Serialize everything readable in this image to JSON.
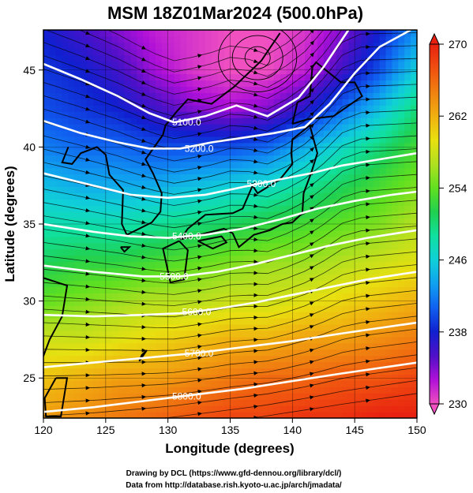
{
  "chart_data": {
    "type": "heatmap",
    "title": "MSM 18Z01Mar2024 (500.0hPa)",
    "xlabel": "Longitude (degrees)",
    "ylabel": "Latitude  (degrees)",
    "xlim": [
      120,
      150
    ],
    "ylim": [
      22.4,
      47.6
    ],
    "x_ticks": [
      "120",
      "125",
      "130",
      "135",
      "140",
      "145",
      "150"
    ],
    "y_ticks": [
      "25",
      "30",
      "35",
      "40",
      "45"
    ],
    "colorbar": {
      "min": 230,
      "max": 270,
      "ticks": [
        "230",
        "238",
        "246",
        "254",
        "262",
        "270"
      ],
      "extend": "both",
      "colors": [
        "#f050c0",
        "#b010d8",
        "#5010c8",
        "#1020d0",
        "#1060f0",
        "#10a0f0",
        "#10d0d8",
        "#10e0a0",
        "#20d050",
        "#60e020",
        "#b0e020",
        "#e8e010",
        "#f0b010",
        "#f08010",
        "#f05010",
        "#e82010"
      ]
    },
    "temperature_field": [
      {
        "lat": 47.5,
        "values": [
          238,
          236,
          234,
          232,
          231,
          230,
          230,
          231,
          234,
          238,
          243
        ]
      },
      {
        "lat": 45,
        "values": [
          239,
          238,
          236,
          233,
          231,
          230,
          230,
          232,
          236,
          240,
          246
        ]
      },
      {
        "lat": 42.5,
        "values": [
          240,
          239,
          238,
          236,
          234,
          233,
          234,
          237,
          241,
          245,
          250
        ]
      },
      {
        "lat": 40,
        "values": [
          242,
          241,
          241,
          240,
          240,
          240,
          241,
          244,
          247,
          250,
          253
        ]
      },
      {
        "lat": 37.5,
        "values": [
          245,
          244,
          244,
          244,
          245,
          246,
          247,
          249,
          251,
          253,
          255
        ]
      },
      {
        "lat": 35,
        "values": [
          248,
          248,
          248,
          249,
          250,
          251,
          252,
          253,
          254,
          255,
          257
        ]
      },
      {
        "lat": 32.5,
        "values": [
          251,
          252,
          252,
          253,
          254,
          255,
          256,
          256,
          257,
          258,
          259
        ]
      },
      {
        "lat": 30,
        "values": [
          254,
          255,
          256,
          257,
          257,
          258,
          258,
          259,
          260,
          261,
          262
        ]
      },
      {
        "lat": 27.5,
        "values": [
          258,
          258,
          259,
          260,
          261,
          262,
          262,
          263,
          263,
          264,
          265
        ]
      },
      {
        "lat": 25,
        "values": [
          261,
          262,
          263,
          263,
          264,
          265,
          266,
          266,
          267,
          267,
          268
        ]
      },
      {
        "lat": 22.5,
        "values": [
          263,
          264,
          265,
          266,
          267,
          268,
          268,
          269,
          269,
          270,
          270
        ]
      }
    ],
    "field_lons": [
      120,
      123,
      126,
      129,
      132,
      135,
      138,
      141,
      144,
      147,
      150
    ],
    "height_contours": [
      {
        "label": "5100.0",
        "points": [
          [
            120,
            45.4
          ],
          [
            123,
            44.4
          ],
          [
            126,
            43.3
          ],
          [
            128.5,
            42.2
          ],
          [
            130.5,
            41.6
          ],
          [
            133,
            42.0
          ],
          [
            135.5,
            42.7
          ],
          [
            138,
            42.0
          ],
          [
            140.5,
            43.2
          ],
          [
            142.5,
            45.2
          ],
          [
            144.5,
            47.6
          ]
        ],
        "label_at": [
          131.5,
          41.6
        ]
      },
      {
        "label": "5200.0",
        "points": [
          [
            120,
            41.7
          ],
          [
            123,
            40.9
          ],
          [
            126,
            40.3
          ],
          [
            128.5,
            39.9
          ],
          [
            131,
            39.9
          ],
          [
            133.5,
            40.3
          ],
          [
            136,
            40.6
          ],
          [
            138.5,
            40.9
          ],
          [
            141,
            41.3
          ],
          [
            143,
            42.8
          ],
          [
            145,
            44.8
          ],
          [
            147,
            46.5
          ],
          [
            149.5,
            47.6
          ]
        ],
        "label_at": [
          132.5,
          39.9
        ]
      },
      {
        "label": "5300.0",
        "points": [
          [
            120,
            38.3
          ],
          [
            124,
            37.5
          ],
          [
            127,
            36.9
          ],
          [
            130,
            36.7
          ],
          [
            133,
            36.9
          ],
          [
            136,
            37.4
          ],
          [
            139,
            37.9
          ],
          [
            141.5,
            38.3
          ],
          [
            144,
            38.8
          ],
          [
            147,
            39.2
          ],
          [
            150,
            39.6
          ]
        ],
        "label_at": [
          137.5,
          37.6
        ]
      },
      {
        "label": "5400.0",
        "points": [
          [
            120,
            35.0
          ],
          [
            124,
            34.5
          ],
          [
            127,
            34.2
          ],
          [
            130,
            34.1
          ],
          [
            133,
            34.3
          ],
          [
            136,
            34.7
          ],
          [
            139,
            35.3
          ],
          [
            142,
            36.0
          ],
          [
            145,
            36.5
          ],
          [
            148,
            36.9
          ],
          [
            150,
            37.1
          ]
        ],
        "label_at": [
          131.5,
          34.2
        ]
      },
      {
        "label": "5500.0",
        "points": [
          [
            120,
            32.3
          ],
          [
            124,
            31.9
          ],
          [
            128,
            31.6
          ],
          [
            131,
            31.6
          ],
          [
            134,
            31.9
          ],
          [
            137,
            32.4
          ],
          [
            140,
            33.0
          ],
          [
            143,
            33.6
          ],
          [
            146,
            34.1
          ],
          [
            150,
            34.6
          ]
        ],
        "label_at": [
          130.5,
          31.6
        ]
      },
      {
        "label": "5600.0",
        "points": [
          [
            120,
            29.1
          ],
          [
            124,
            29.0
          ],
          [
            128,
            29.1
          ],
          [
            131,
            29.2
          ],
          [
            134,
            29.5
          ],
          [
            137,
            29.9
          ],
          [
            140,
            30.4
          ],
          [
            143,
            30.9
          ],
          [
            146,
            31.4
          ],
          [
            150,
            31.9
          ]
        ],
        "label_at": [
          132.3,
          29.3
        ]
      },
      {
        "label": "5700.0",
        "points": [
          [
            120,
            25.7
          ],
          [
            124,
            26.0
          ],
          [
            128,
            26.3
          ],
          [
            132,
            26.6
          ],
          [
            136,
            27.0
          ],
          [
            140,
            27.4
          ],
          [
            144,
            27.9
          ],
          [
            150,
            28.6
          ]
        ],
        "label_at": [
          132.5,
          26.6
        ]
      },
      {
        "label": "5800.0",
        "points": [
          [
            120,
            22.8
          ],
          [
            124,
            23.1
          ],
          [
            128,
            23.5
          ],
          [
            132,
            23.9
          ],
          [
            136,
            24.3
          ],
          [
            140,
            24.8
          ],
          [
            144,
            25.3
          ],
          [
            150,
            26.0
          ]
        ],
        "label_at": [
          131.5,
          23.8
        ]
      }
    ],
    "low_center": {
      "lon": 137.2,
      "lat": 45.8
    },
    "grid": true,
    "streamlines": "dense wind vectors following the height contours; cyclonic circulation around the low center"
  },
  "credits": [
    "Drawing by DCL (https://www.gfd-dennou.org/library/dcl/)",
    "Data from http://database.rish.kyoto-u.ac.jp/arch/jmadata/"
  ]
}
